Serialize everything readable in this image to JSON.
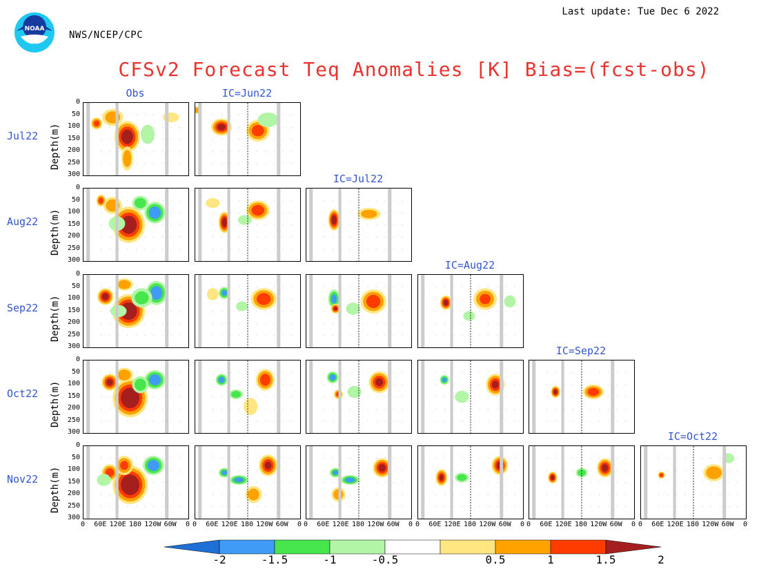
{
  "header": {
    "agency": "NWS/NCEP/CPC",
    "last_update": "Last update: Tue Dec 6 2022",
    "title": "CFSv2 Forecast Teq Anomalies [K] Bias=(fcst-obs)"
  },
  "colors": {
    "title": "#e8332f",
    "labels": "#3356cc",
    "land_mask": "#cccccc"
  },
  "chart_data": {
    "type": "heatmap",
    "title": "CFSv2 Forecast Teq Anomalies [K] Bias=(fcst-obs)",
    "ylabel": "Depth(m)",
    "y_ticks": [
      "0",
      "50",
      "100",
      "150",
      "200",
      "250",
      "300"
    ],
    "x_ticks": [
      "0",
      "60E",
      "120E",
      "180",
      "120W",
      "60W",
      "0"
    ],
    "ylim": [
      0,
      300
    ],
    "columns": [
      "Obs",
      "IC=Jun22",
      "IC=Jul22",
      "IC=Aug22",
      "IC=Sep22",
      "IC=Oct22"
    ],
    "rows": [
      "Jul22",
      "Aug22",
      "Sep22",
      "Oct22",
      "Nov22"
    ],
    "colorbar": {
      "levels": [
        "-2",
        "-1.5",
        "-1",
        "-0.5",
        "0.5",
        "1",
        "1.5",
        "2"
      ],
      "colors": [
        "#1e6fd6",
        "#3f9bf5",
        "#47e64d",
        "#b2f5a6",
        "#ffffff",
        "#ffe680",
        "#ffa200",
        "#ff3c00",
        "#a51f1f"
      ]
    },
    "panels": [
      {
        "row": 0,
        "col": 0,
        "blobs": [
          {
            "lon": 150,
            "d": 140,
            "rw": 22,
            "rd": 65,
            "v": 2.4
          },
          {
            "lon": 45,
            "d": 85,
            "rw": 10,
            "rd": 25,
            "v": 1.6
          },
          {
            "lon": 100,
            "d": 60,
            "rw": 18,
            "rd": 35,
            "v": 1.2
          },
          {
            "lon": 220,
            "d": 130,
            "rw": 12,
            "rd": 40,
            "v": -0.7
          },
          {
            "lon": 300,
            "d": 60,
            "rw": 14,
            "rd": 20,
            "v": 0.8
          },
          {
            "lon": 150,
            "d": 230,
            "rw": 10,
            "rd": 50,
            "v": 1.2
          }
        ]
      },
      {
        "row": 0,
        "col": 1,
        "blobs": [
          {
            "lon": 90,
            "d": 100,
            "rw": 18,
            "rd": 35,
            "v": 2.1
          },
          {
            "lon": 215,
            "d": 115,
            "rw": 20,
            "rd": 45,
            "v": 1.7
          },
          {
            "lon": 250,
            "d": 70,
            "rw": 18,
            "rd": 30,
            "v": -0.7
          },
          {
            "lon": 5,
            "d": 30,
            "rw": 8,
            "rd": 15,
            "v": 1.4
          }
        ]
      },
      {
        "row": 1,
        "col": 0,
        "blobs": [
          {
            "lon": 155,
            "d": 150,
            "rw": 28,
            "rd": 75,
            "v": 2.6
          },
          {
            "lon": 245,
            "d": 100,
            "rw": 18,
            "rd": 45,
            "v": -1.9
          },
          {
            "lon": 100,
            "d": 70,
            "rw": 16,
            "rd": 35,
            "v": 1.3
          },
          {
            "lon": 195,
            "d": 60,
            "rw": 14,
            "rd": 30,
            "v": -1.2
          },
          {
            "lon": 115,
            "d": 145,
            "rw": 14,
            "rd": 30,
            "v": -0.8
          },
          {
            "lon": 60,
            "d": 50,
            "rw": 8,
            "rd": 25,
            "v": 1.7
          }
        ]
      },
      {
        "row": 1,
        "col": 1,
        "blobs": [
          {
            "lon": 100,
            "d": 140,
            "rw": 10,
            "rd": 45,
            "v": 2.3
          },
          {
            "lon": 215,
            "d": 90,
            "rw": 20,
            "rd": 40,
            "v": 1.8
          },
          {
            "lon": 170,
            "d": 130,
            "rw": 12,
            "rd": 20,
            "v": -0.9
          },
          {
            "lon": 60,
            "d": 60,
            "rw": 12,
            "rd": 20,
            "v": 0.8
          }
        ]
      },
      {
        "row": 1,
        "col": 2,
        "blobs": [
          {
            "lon": 95,
            "d": 130,
            "rw": 10,
            "rd": 45,
            "v": 2.3
          },
          {
            "lon": 215,
            "d": 105,
            "rw": 20,
            "rd": 25,
            "v": 1.1
          }
        ]
      },
      {
        "row": 2,
        "col": 0,
        "blobs": [
          {
            "lon": 155,
            "d": 150,
            "rw": 28,
            "rd": 70,
            "v": 2.7
          },
          {
            "lon": 250,
            "d": 75,
            "rw": 18,
            "rd": 50,
            "v": -1.9
          },
          {
            "lon": 75,
            "d": 90,
            "rw": 14,
            "rd": 35,
            "v": 2.2
          },
          {
            "lon": 200,
            "d": 95,
            "rw": 18,
            "rd": 40,
            "v": -1.0
          },
          {
            "lon": 140,
            "d": 40,
            "rw": 15,
            "rd": 25,
            "v": 1.4
          },
          {
            "lon": 120,
            "d": 150,
            "rw": 14,
            "rd": 25,
            "v": -0.7
          }
        ]
      },
      {
        "row": 2,
        "col": 1,
        "blobs": [
          {
            "lon": 235,
            "d": 100,
            "rw": 22,
            "rd": 45,
            "v": 1.8
          },
          {
            "lon": 100,
            "d": 75,
            "rw": 10,
            "rd": 25,
            "v": -1.5
          },
          {
            "lon": 160,
            "d": 130,
            "rw": 10,
            "rd": 20,
            "v": -0.9
          },
          {
            "lon": 60,
            "d": 80,
            "rw": 10,
            "rd": 25,
            "v": 0.8
          }
        ]
      },
      {
        "row": 2,
        "col": 2,
        "blobs": [
          {
            "lon": 95,
            "d": 100,
            "rw": 10,
            "rd": 40,
            "v": -1.5
          },
          {
            "lon": 230,
            "d": 110,
            "rw": 22,
            "rd": 50,
            "v": 1.8
          },
          {
            "lon": 160,
            "d": 140,
            "rw": 12,
            "rd": 25,
            "v": -0.9
          },
          {
            "lon": 100,
            "d": 140,
            "rw": 8,
            "rd": 20,
            "v": 2.0
          }
        ]
      },
      {
        "row": 2,
        "col": 3,
        "blobs": [
          {
            "lon": 95,
            "d": 115,
            "rw": 10,
            "rd": 30,
            "v": 2.2
          },
          {
            "lon": 230,
            "d": 100,
            "rw": 20,
            "rd": 45,
            "v": 1.5
          },
          {
            "lon": 175,
            "d": 170,
            "rw": 10,
            "rd": 20,
            "v": -0.8
          },
          {
            "lon": 315,
            "d": 110,
            "rw": 10,
            "rd": 25,
            "v": -0.7
          }
        ]
      },
      {
        "row": 3,
        "col": 0,
        "blobs": [
          {
            "lon": 160,
            "d": 155,
            "rw": 30,
            "rd": 80,
            "v": 2.8
          },
          {
            "lon": 245,
            "d": 80,
            "rw": 18,
            "rd": 40,
            "v": -1.9
          },
          {
            "lon": 90,
            "d": 90,
            "rw": 14,
            "rd": 35,
            "v": 2.1
          },
          {
            "lon": 195,
            "d": 100,
            "rw": 14,
            "rd": 35,
            "v": -1.2
          },
          {
            "lon": 140,
            "d": 60,
            "rw": 15,
            "rd": 30,
            "v": 1.4
          }
        ]
      },
      {
        "row": 3,
        "col": 1,
        "blobs": [
          {
            "lon": 240,
            "d": 80,
            "rw": 16,
            "rd": 45,
            "v": 1.8
          },
          {
            "lon": 90,
            "d": 80,
            "rw": 10,
            "rd": 25,
            "v": -1.7
          },
          {
            "lon": 140,
            "d": 140,
            "rw": 12,
            "rd": 20,
            "v": -1.2
          },
          {
            "lon": 190,
            "d": 190,
            "rw": 12,
            "rd": 35,
            "v": 0.8
          }
        ]
      },
      {
        "row": 3,
        "col": 2,
        "blobs": [
          {
            "lon": 90,
            "d": 70,
            "rw": 10,
            "rd": 25,
            "v": -1.7
          },
          {
            "lon": 250,
            "d": 90,
            "rw": 18,
            "rd": 45,
            "v": 2.0
          },
          {
            "lon": 165,
            "d": 130,
            "rw": 12,
            "rd": 25,
            "v": -0.9
          },
          {
            "lon": 110,
            "d": 140,
            "rw": 8,
            "rd": 20,
            "v": 1.6
          }
        ]
      },
      {
        "row": 3,
        "col": 3,
        "blobs": [
          {
            "lon": 265,
            "d": 100,
            "rw": 16,
            "rd": 45,
            "v": 2.0
          },
          {
            "lon": 90,
            "d": 80,
            "rw": 8,
            "rd": 20,
            "v": -1.6
          },
          {
            "lon": 150,
            "d": 150,
            "rw": 12,
            "rd": 25,
            "v": -0.8
          }
        ]
      },
      {
        "row": 3,
        "col": 4,
        "blobs": [
          {
            "lon": 90,
            "d": 130,
            "rw": 8,
            "rd": 25,
            "v": 2.2
          },
          {
            "lon": 220,
            "d": 130,
            "rw": 18,
            "rd": 30,
            "v": 1.8
          }
        ]
      },
      {
        "row": 4,
        "col": 0,
        "blobs": [
          {
            "lon": 160,
            "d": 160,
            "rw": 30,
            "rd": 80,
            "v": 2.8
          },
          {
            "lon": 240,
            "d": 80,
            "rw": 18,
            "rd": 40,
            "v": -1.9
          },
          {
            "lon": 90,
            "d": 110,
            "rw": 14,
            "rd": 35,
            "v": 1.7
          },
          {
            "lon": 140,
            "d": 80,
            "rw": 15,
            "rd": 40,
            "v": 1.5
          },
          {
            "lon": 70,
            "d": 140,
            "rw": 12,
            "rd": 25,
            "v": -0.7
          }
        ]
      },
      {
        "row": 4,
        "col": 1,
        "blobs": [
          {
            "lon": 250,
            "d": 80,
            "rw": 16,
            "rd": 45,
            "v": 2.0
          },
          {
            "lon": 150,
            "d": 140,
            "rw": 16,
            "rd": 20,
            "v": -1.7
          },
          {
            "lon": 100,
            "d": 110,
            "rw": 10,
            "rd": 20,
            "v": -1.5
          },
          {
            "lon": 200,
            "d": 200,
            "rw": 14,
            "rd": 35,
            "v": 1.1
          }
        ]
      },
      {
        "row": 4,
        "col": 2,
        "blobs": [
          {
            "lon": 260,
            "d": 90,
            "rw": 16,
            "rd": 40,
            "v": 2.1
          },
          {
            "lon": 150,
            "d": 140,
            "rw": 16,
            "rd": 20,
            "v": -1.7
          },
          {
            "lon": 100,
            "d": 110,
            "rw": 10,
            "rd": 20,
            "v": -1.5
          },
          {
            "lon": 110,
            "d": 200,
            "rw": 12,
            "rd": 30,
            "v": 1.2
          }
        ]
      },
      {
        "row": 4,
        "col": 3,
        "blobs": [
          {
            "lon": 280,
            "d": 80,
            "rw": 14,
            "rd": 40,
            "v": 2.1
          },
          {
            "lon": 80,
            "d": 130,
            "rw": 10,
            "rd": 35,
            "v": 2.0
          },
          {
            "lon": 150,
            "d": 130,
            "rw": 12,
            "rd": 20,
            "v": -1.2
          }
        ]
      },
      {
        "row": 4,
        "col": 4,
        "blobs": [
          {
            "lon": 260,
            "d": 90,
            "rw": 14,
            "rd": 40,
            "v": 2.1
          },
          {
            "lon": 80,
            "d": 130,
            "rw": 8,
            "rd": 25,
            "v": 2.2
          },
          {
            "lon": 180,
            "d": 110,
            "rw": 10,
            "rd": 20,
            "v": -1.2
          }
        ]
      },
      {
        "row": 4,
        "col": 5,
        "blobs": [
          {
            "lon": 250,
            "d": 110,
            "rw": 18,
            "rd": 35,
            "v": 1.4
          },
          {
            "lon": 70,
            "d": 120,
            "rw": 6,
            "rd": 15,
            "v": 1.8
          },
          {
            "lon": 300,
            "d": 50,
            "rw": 10,
            "rd": 20,
            "v": -0.7
          }
        ]
      }
    ]
  }
}
